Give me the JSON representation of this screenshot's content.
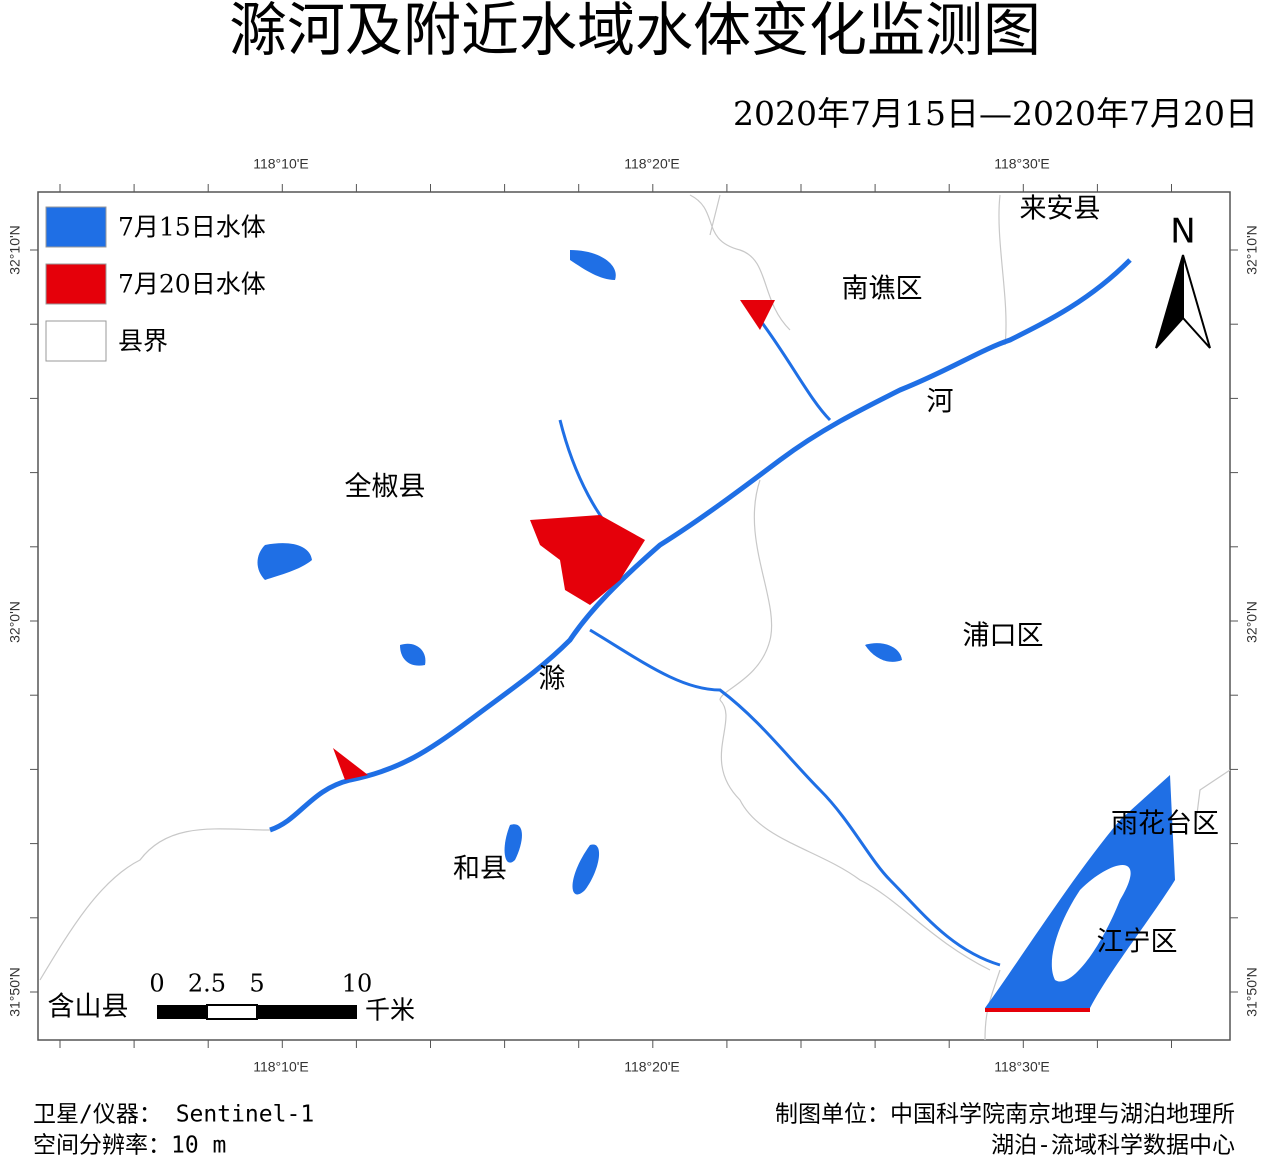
{
  "title": "滁河及附近水域水体变化监测图",
  "date_range": "2020年7月15日—2020年7月20日",
  "map": {
    "top_ticks": [
      "118°10'E",
      "118°20'E",
      "118°30'E"
    ],
    "bottom_ticks": [
      "118°10'E",
      "118°20'E",
      "118°30'E"
    ],
    "left_ticks": [
      "32°10'N",
      "32°0'N",
      "31°50'N"
    ],
    "right_ticks": [
      "32°10'N",
      "32°0'N",
      "31°50'N"
    ],
    "legend": [
      {
        "label": "7月15日水体",
        "color": "#1f6fe5"
      },
      {
        "label": "7月20日水体",
        "color": "#e5000a"
      },
      {
        "label": "县界",
        "color": "#ffffff"
      }
    ],
    "place_labels": [
      "来安县",
      "南谯区",
      "河",
      "全椒县",
      "浦口区",
      "滁",
      "雨花台区",
      "和县",
      "江宁区",
      "含山县"
    ],
    "north": "N",
    "scale_bar": {
      "labels": [
        "0",
        "2.5",
        "5",
        "10"
      ],
      "unit": "千米"
    }
  },
  "footer": {
    "satellite": "卫星/仪器： Sentinel-1",
    "resolution": "空间分辨率：10 m",
    "org_1": "制图单位：中国科学院南京地理与湖泊地理所",
    "org_2": "湖泊-流域科学数据中心"
  }
}
